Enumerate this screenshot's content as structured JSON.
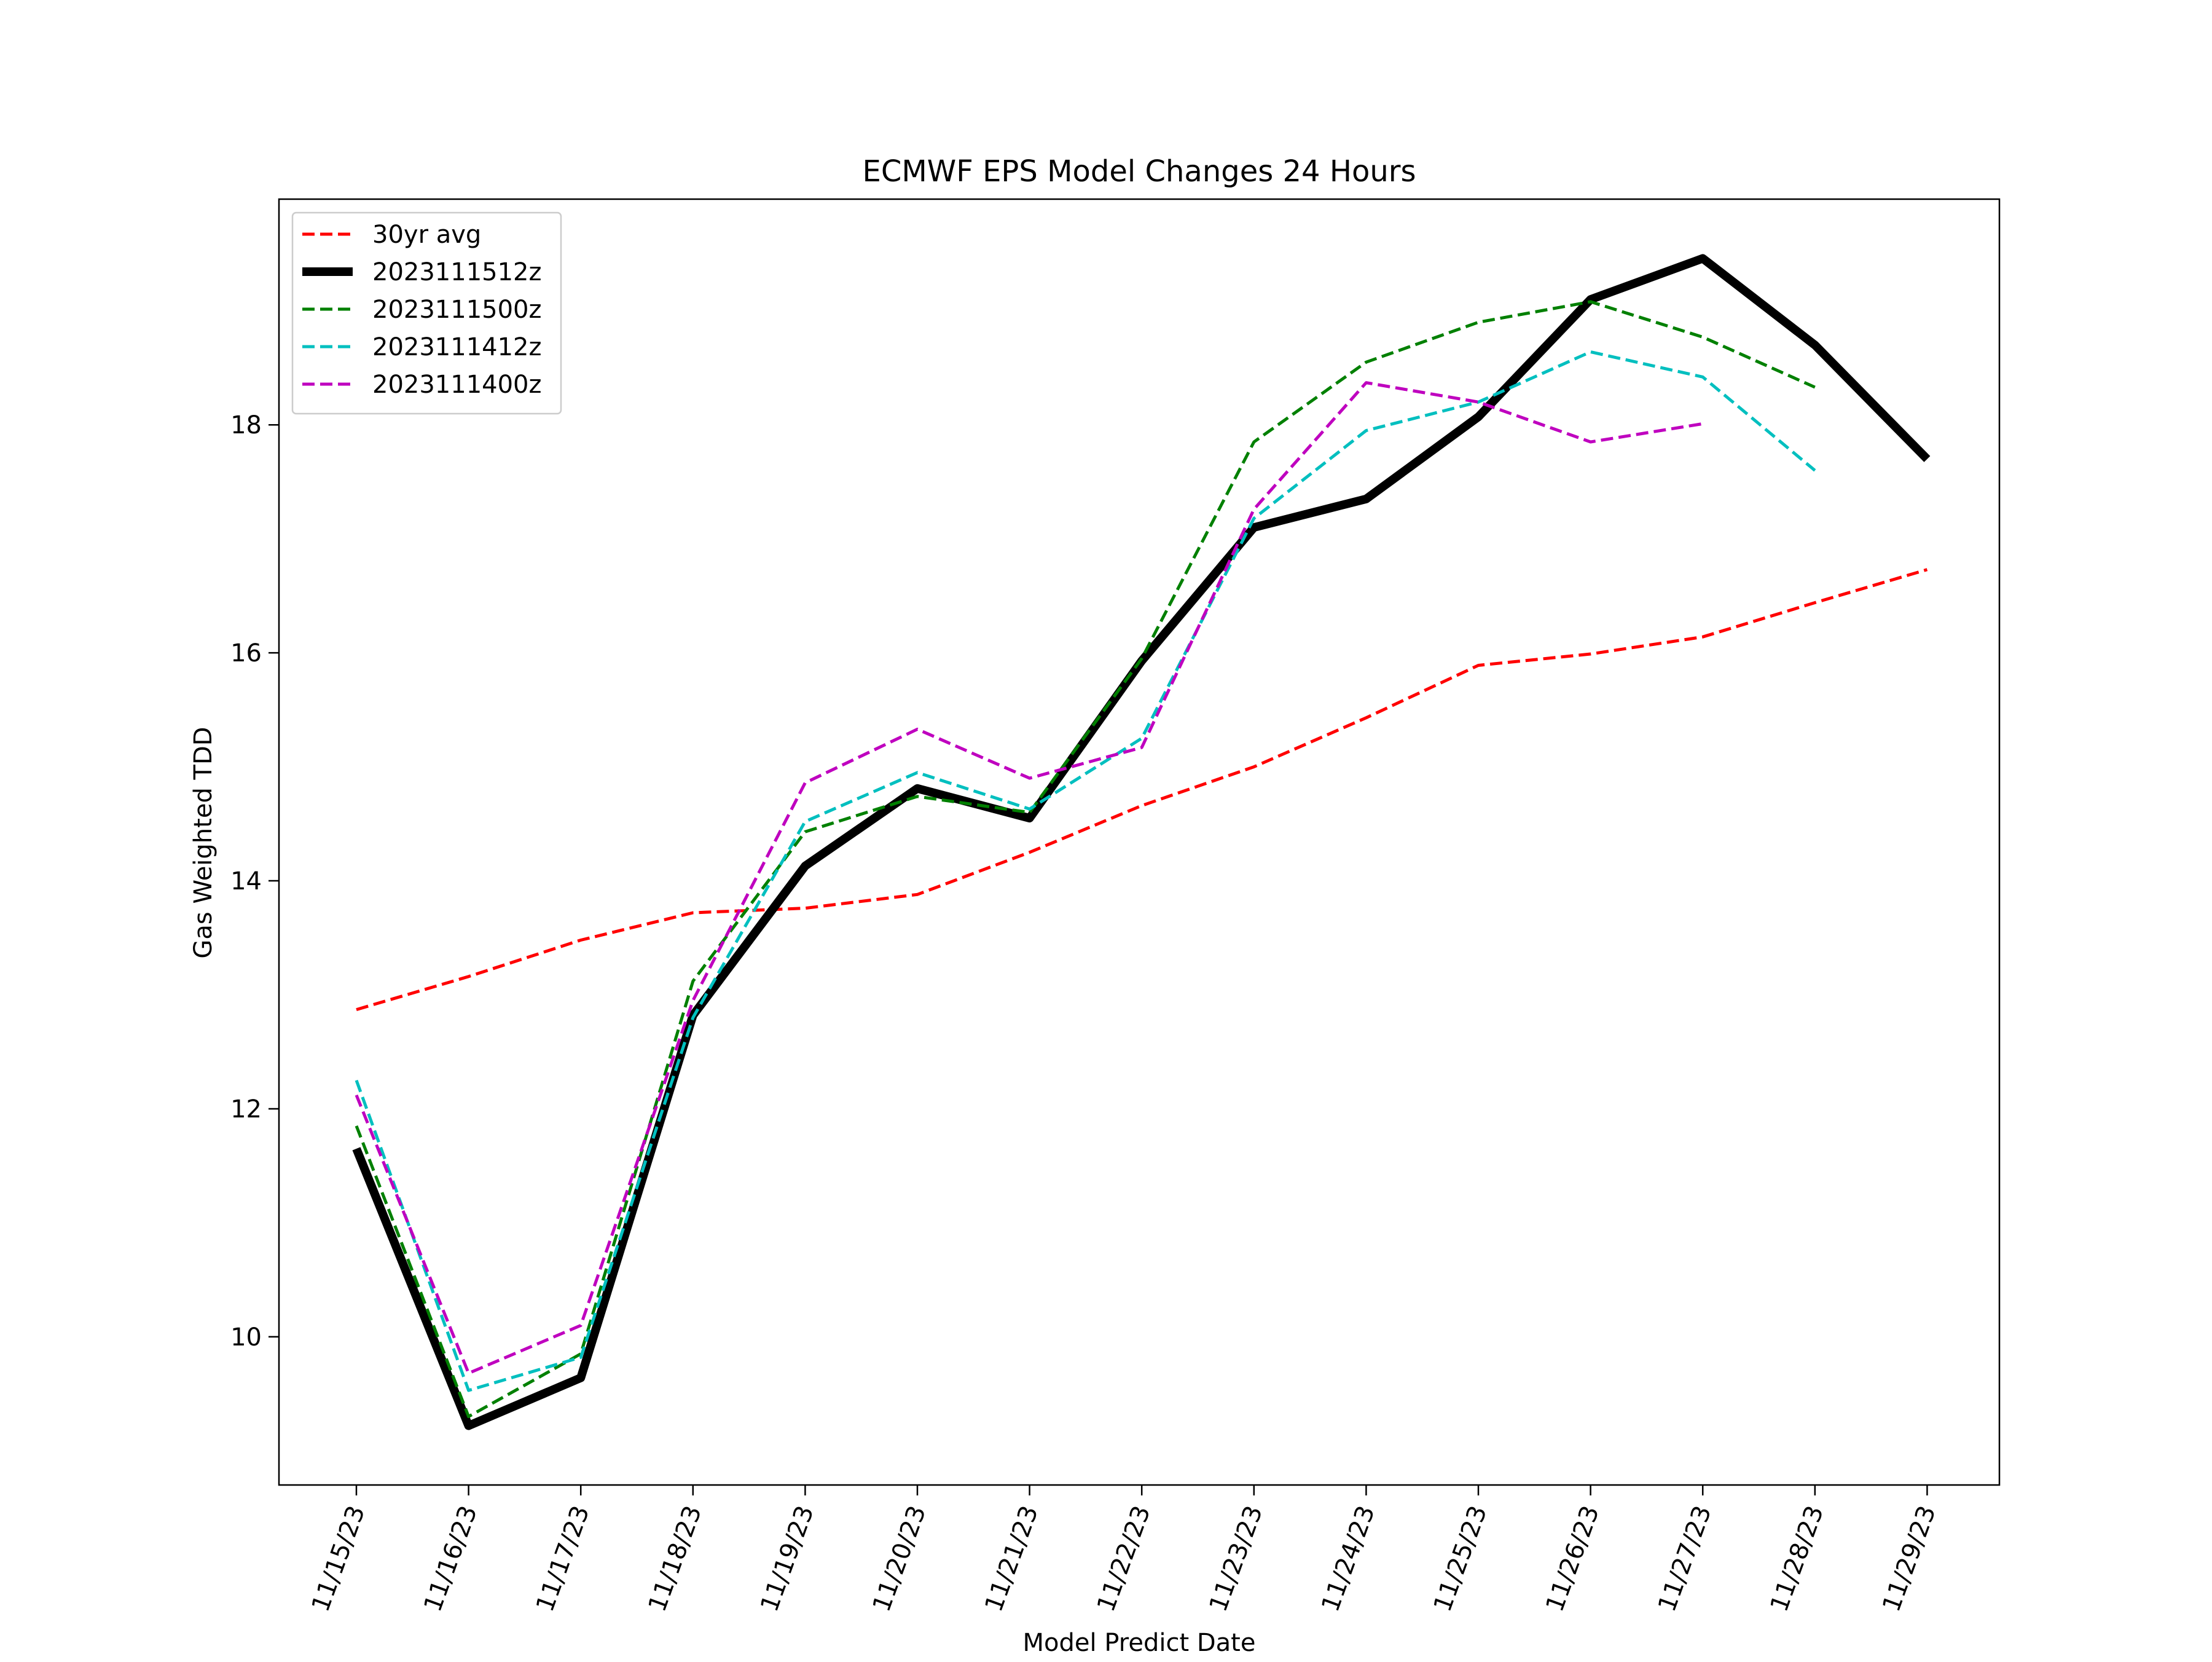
{
  "chart_data": {
    "type": "line",
    "title": "ECMWF EPS Model Changes 24 Hours",
    "xlabel": "Model Predict Date",
    "ylabel": "Gas Weighted TDD",
    "categories": [
      "11/15/23",
      "11/16/23",
      "11/17/23",
      "11/18/23",
      "11/19/23",
      "11/20/23",
      "11/21/23",
      "11/22/23",
      "11/23/23",
      "11/24/23",
      "11/25/23",
      "11/26/23",
      "11/27/23",
      "11/28/23",
      "11/29/23"
    ],
    "yticks": [
      10,
      12,
      14,
      16,
      18
    ],
    "ylim": [
      8.7,
      19.98
    ],
    "grid": false,
    "legend_position": "upper-left",
    "series": [
      {
        "name": "30yr avg",
        "color": "#ff0000",
        "style": "dashed",
        "values": [
          12.87,
          13.16,
          13.48,
          13.72,
          13.76,
          13.88,
          14.25,
          14.66,
          15.0,
          15.43,
          15.89,
          15.99,
          16.14,
          16.44,
          16.73
        ]
      },
      {
        "name": "2023111512z",
        "color": "#000000",
        "style": "solid-thick",
        "values": [
          11.65,
          9.22,
          9.64,
          12.82,
          14.13,
          14.81,
          14.55,
          15.93,
          17.1,
          17.35,
          18.07,
          19.1,
          19.46,
          18.7,
          17.7
        ]
      },
      {
        "name": "2023111500z",
        "color": "#008000",
        "style": "dashed",
        "values": [
          11.85,
          9.3,
          9.85,
          13.12,
          14.43,
          14.74,
          14.6,
          15.95,
          17.85,
          18.55,
          18.9,
          19.08,
          18.77,
          18.33,
          null
        ]
      },
      {
        "name": "2023111412z",
        "color": "#00bfbf",
        "style": "dashed",
        "values": [
          12.25,
          9.53,
          9.82,
          12.8,
          14.52,
          14.95,
          14.63,
          15.25,
          17.18,
          17.95,
          18.2,
          18.64,
          18.42,
          17.6,
          null
        ]
      },
      {
        "name": "2023111400z",
        "color": "#bf00bf",
        "style": "dashed",
        "values": [
          12.12,
          9.68,
          10.1,
          12.95,
          14.86,
          15.33,
          14.9,
          15.17,
          17.26,
          18.37,
          18.2,
          17.85,
          18.01,
          null,
          null
        ]
      }
    ]
  }
}
